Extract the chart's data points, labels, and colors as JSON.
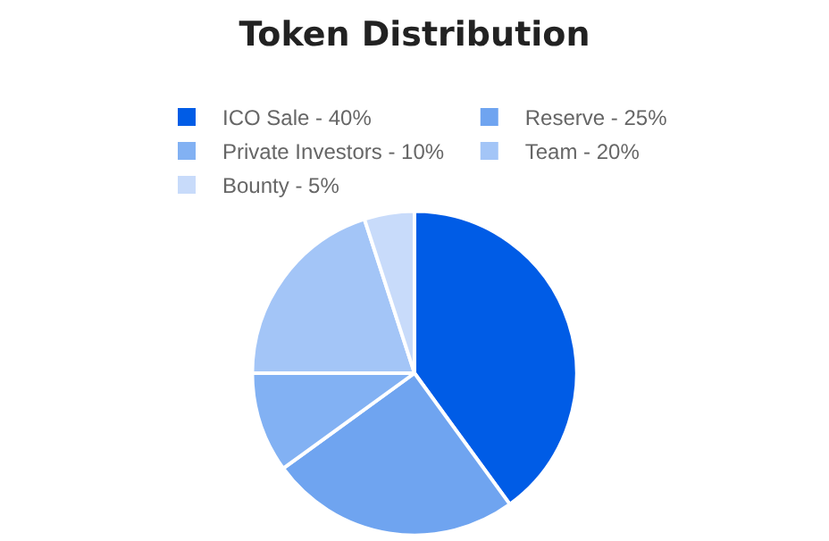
{
  "chart_data": {
    "type": "pie",
    "title": "Token Distribution",
    "categories": [
      "ICO Sale - 40%",
      "Reserve - 25%",
      "Private Investors - 10%",
      "Team - 20%",
      "Bounty - 5%"
    ],
    "values": [
      40,
      25,
      10,
      20,
      5
    ],
    "colors": [
      "#005ce6",
      "#6fa4f0",
      "#82b1f3",
      "#a3c5f7",
      "#c8dbfa"
    ],
    "legend": "top"
  }
}
